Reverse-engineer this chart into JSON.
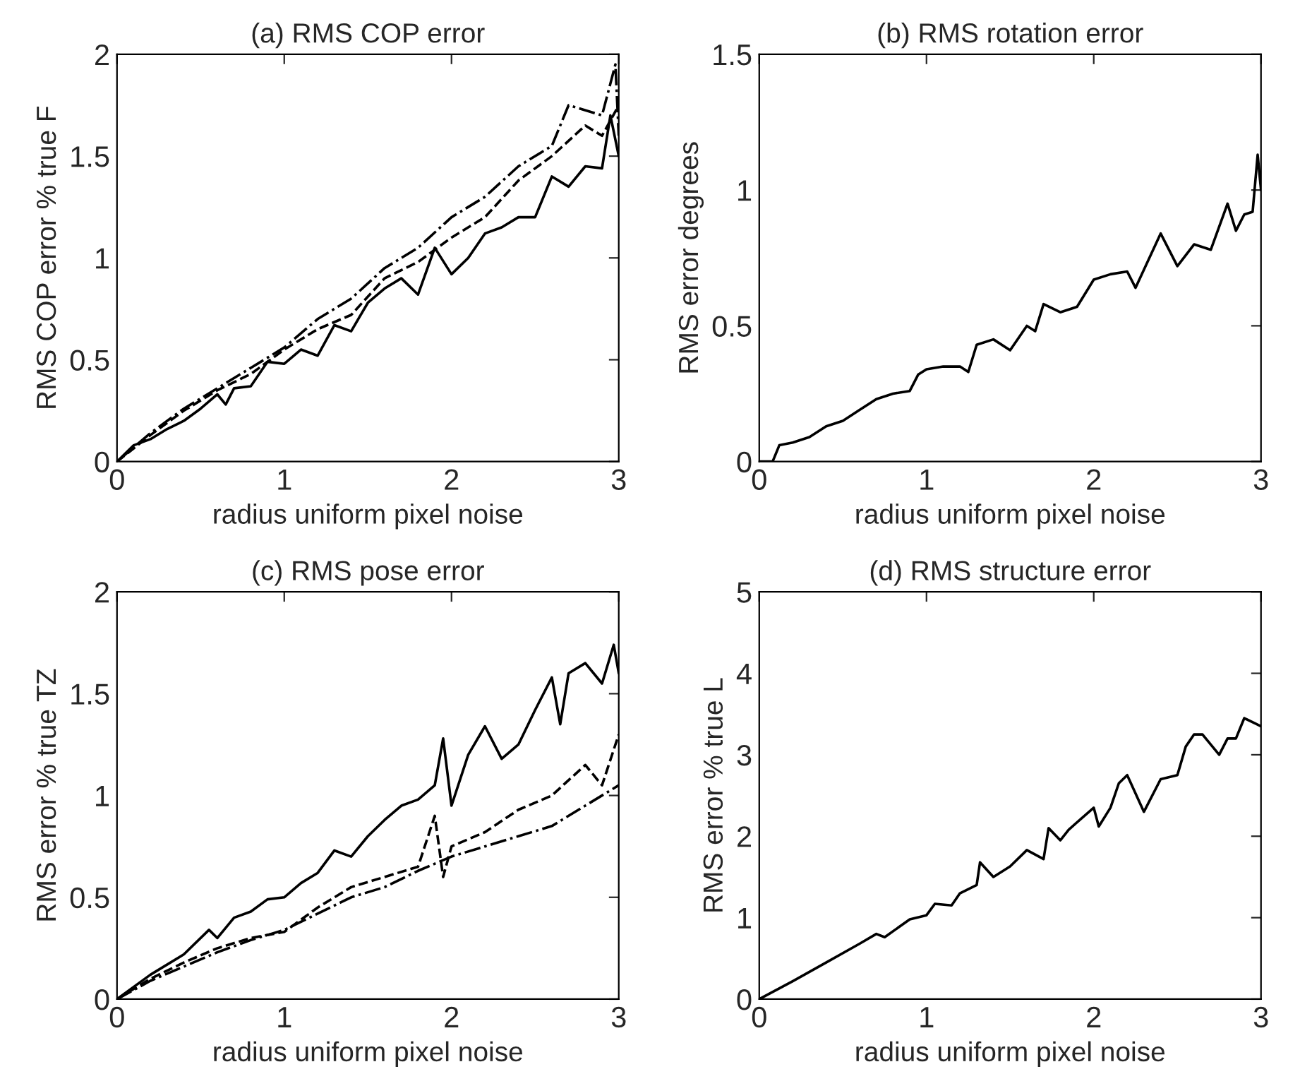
{
  "chart_data": [
    {
      "type": "line",
      "title": "(a) RMS COP error",
      "xlabel": "radius uniform pixel noise",
      "ylabel": "RMS COP error % true F",
      "xlim": [
        0,
        3
      ],
      "ylim": [
        0,
        2
      ],
      "xticks": [
        0,
        1,
        2,
        3
      ],
      "yticks": [
        0,
        0.5,
        1,
        1.5,
        2
      ],
      "grid": false,
      "series": [
        {
          "color": "#000000",
          "line_style": "solid",
          "x": [
            0,
            0.1,
            0.2,
            0.3,
            0.4,
            0.5,
            0.6,
            0.65,
            0.7,
            0.8,
            0.9,
            1.0,
            1.1,
            1.2,
            1.3,
            1.4,
            1.5,
            1.6,
            1.7,
            1.8,
            1.9,
            2.0,
            2.1,
            2.2,
            2.3,
            2.4,
            2.5,
            2.6,
            2.7,
            2.8,
            2.9,
            2.95,
            3.0
          ],
          "values": [
            0,
            0.08,
            0.11,
            0.16,
            0.2,
            0.26,
            0.33,
            0.28,
            0.36,
            0.37,
            0.49,
            0.48,
            0.55,
            0.52,
            0.67,
            0.64,
            0.78,
            0.85,
            0.9,
            0.82,
            1.05,
            0.92,
            1.0,
            1.12,
            1.15,
            1.2,
            1.2,
            1.4,
            1.35,
            1.45,
            1.44,
            1.7,
            1.5
          ]
        },
        {
          "color": "#000000",
          "line_style": "dashed",
          "x": [
            0,
            0.2,
            0.4,
            0.6,
            0.8,
            1.0,
            1.2,
            1.4,
            1.6,
            1.8,
            2.0,
            2.2,
            2.4,
            2.6,
            2.8,
            2.9,
            3.0
          ],
          "values": [
            0,
            0.13,
            0.25,
            0.35,
            0.43,
            0.55,
            0.65,
            0.72,
            0.9,
            0.98,
            1.1,
            1.2,
            1.38,
            1.5,
            1.65,
            1.6,
            1.75
          ]
        },
        {
          "color": "#000000",
          "line_style": "dashdot",
          "x": [
            0,
            0.2,
            0.4,
            0.6,
            0.8,
            1.0,
            1.2,
            1.4,
            1.6,
            1.8,
            2.0,
            2.2,
            2.4,
            2.6,
            2.7,
            2.9,
            2.98,
            3.0
          ],
          "values": [
            0,
            0.14,
            0.26,
            0.36,
            0.46,
            0.56,
            0.7,
            0.8,
            0.95,
            1.05,
            1.2,
            1.3,
            1.45,
            1.55,
            1.75,
            1.7,
            1.95,
            1.6
          ]
        }
      ]
    },
    {
      "type": "line",
      "title": "(b) RMS rotation error",
      "xlabel": "radius uniform pixel noise",
      "ylabel": "RMS error degrees",
      "xlim": [
        0,
        3
      ],
      "ylim": [
        0,
        1.5
      ],
      "xticks": [
        0,
        1,
        2,
        3
      ],
      "yticks": [
        0,
        0.5,
        1,
        1.5
      ],
      "grid": false,
      "series": [
        {
          "color": "#000000",
          "line_style": "solid",
          "x": [
            0,
            0.08,
            0.12,
            0.2,
            0.3,
            0.4,
            0.5,
            0.6,
            0.7,
            0.8,
            0.9,
            0.95,
            1.0,
            1.1,
            1.2,
            1.25,
            1.3,
            1.4,
            1.5,
            1.6,
            1.65,
            1.7,
            1.8,
            1.9,
            2.0,
            2.1,
            2.2,
            2.25,
            2.4,
            2.5,
            2.6,
            2.7,
            2.8,
            2.85,
            2.9,
            2.95,
            2.98,
            3.0
          ],
          "values": [
            0,
            0,
            0.06,
            0.07,
            0.09,
            0.13,
            0.15,
            0.19,
            0.23,
            0.25,
            0.26,
            0.32,
            0.34,
            0.35,
            0.35,
            0.33,
            0.43,
            0.45,
            0.41,
            0.5,
            0.48,
            0.58,
            0.55,
            0.57,
            0.67,
            0.69,
            0.7,
            0.64,
            0.84,
            0.72,
            0.8,
            0.78,
            0.95,
            0.85,
            0.91,
            0.92,
            1.13,
            1.0
          ]
        }
      ]
    },
    {
      "type": "line",
      "title": "(c) RMS pose error",
      "xlabel": "radius uniform pixel noise",
      "ylabel": "RMS error % true TZ",
      "xlim": [
        0,
        3
      ],
      "ylim": [
        0,
        2
      ],
      "xticks": [
        0,
        1,
        2,
        3
      ],
      "yticks": [
        0,
        0.5,
        1,
        1.5,
        2
      ],
      "grid": false,
      "series": [
        {
          "color": "#000000",
          "line_style": "solid",
          "x": [
            0,
            0.2,
            0.4,
            0.55,
            0.6,
            0.7,
            0.8,
            0.9,
            1.0,
            1.1,
            1.2,
            1.3,
            1.4,
            1.5,
            1.6,
            1.7,
            1.8,
            1.9,
            1.95,
            2.0,
            2.1,
            2.2,
            2.3,
            2.4,
            2.5,
            2.6,
            2.65,
            2.7,
            2.8,
            2.9,
            2.97,
            3.0
          ],
          "values": [
            0,
            0.12,
            0.22,
            0.34,
            0.3,
            0.4,
            0.43,
            0.49,
            0.5,
            0.57,
            0.62,
            0.73,
            0.7,
            0.8,
            0.88,
            0.95,
            0.98,
            1.05,
            1.28,
            0.95,
            1.2,
            1.34,
            1.18,
            1.25,
            1.42,
            1.58,
            1.35,
            1.6,
            1.65,
            1.55,
            1.74,
            1.6
          ]
        },
        {
          "color": "#000000",
          "line_style": "dashed",
          "x": [
            0,
            0.2,
            0.4,
            0.6,
            0.8,
            1.0,
            1.2,
            1.4,
            1.6,
            1.8,
            1.9,
            1.95,
            2.0,
            2.2,
            2.4,
            2.6,
            2.8,
            2.9,
            3.0
          ],
          "values": [
            0,
            0.1,
            0.18,
            0.25,
            0.3,
            0.33,
            0.45,
            0.55,
            0.6,
            0.65,
            0.9,
            0.6,
            0.75,
            0.82,
            0.93,
            1.0,
            1.15,
            1.05,
            1.3
          ]
        },
        {
          "color": "#000000",
          "line_style": "dashdot",
          "x": [
            0,
            0.2,
            0.4,
            0.6,
            0.8,
            1.0,
            1.2,
            1.4,
            1.6,
            1.8,
            2.0,
            2.2,
            2.4,
            2.6,
            2.8,
            3.0
          ],
          "values": [
            0,
            0.09,
            0.16,
            0.23,
            0.29,
            0.34,
            0.42,
            0.5,
            0.55,
            0.63,
            0.7,
            0.75,
            0.8,
            0.85,
            0.95,
            1.05
          ]
        }
      ]
    },
    {
      "type": "line",
      "title": "(d) RMS structure error",
      "xlabel": "radius uniform pixel noise",
      "ylabel": "RMS error % true L",
      "xlim": [
        0,
        3
      ],
      "ylim": [
        0,
        5
      ],
      "xticks": [
        0,
        1,
        2,
        3
      ],
      "yticks": [
        0,
        1,
        2,
        3,
        4,
        5
      ],
      "grid": false,
      "series": [
        {
          "color": "#000000",
          "line_style": "solid",
          "x": [
            0,
            0.2,
            0.4,
            0.6,
            0.7,
            0.75,
            0.9,
            1.0,
            1.05,
            1.15,
            1.2,
            1.3,
            1.32,
            1.4,
            1.5,
            1.6,
            1.7,
            1.73,
            1.8,
            1.85,
            2.0,
            2.03,
            2.1,
            2.15,
            2.2,
            2.3,
            2.4,
            2.5,
            2.55,
            2.6,
            2.65,
            2.75,
            2.8,
            2.85,
            2.9,
            3.0
          ],
          "values": [
            0,
            0.22,
            0.45,
            0.68,
            0.8,
            0.76,
            0.98,
            1.03,
            1.17,
            1.15,
            1.3,
            1.4,
            1.68,
            1.5,
            1.63,
            1.83,
            1.72,
            2.1,
            1.95,
            2.08,
            2.35,
            2.12,
            2.35,
            2.65,
            2.75,
            2.3,
            2.7,
            2.75,
            3.1,
            3.25,
            3.25,
            3.0,
            3.2,
            3.2,
            3.45,
            3.35
          ]
        }
      ]
    }
  ]
}
